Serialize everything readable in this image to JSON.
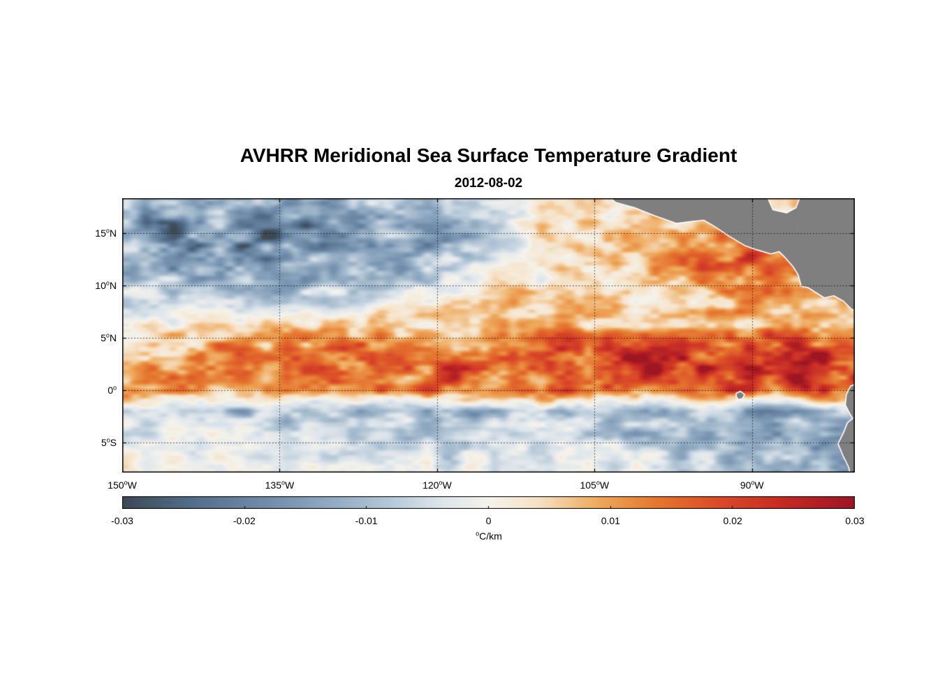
{
  "chart_data": {
    "type": "heatmap",
    "title": "AVHRR Meridional Sea Surface Temperature Gradient",
    "subtitle": "2012-08-02",
    "deg_symbol": "o",
    "extent": {
      "lon_west": 150,
      "lon_east": 80.2,
      "lat_north": 18.3,
      "lat_south": -7.85
    },
    "xaxis": {
      "ticks": [
        {
          "v": 150,
          "label": "150",
          "dir": "W"
        },
        {
          "v": 135,
          "label": "135",
          "dir": "W"
        },
        {
          "v": 120,
          "label": "120",
          "dir": "W"
        },
        {
          "v": 105,
          "label": "105",
          "dir": "W"
        },
        {
          "v": 90,
          "label": "90",
          "dir": "W"
        }
      ]
    },
    "yaxis": {
      "ticks": [
        {
          "v": 15,
          "label": "15",
          "dir": "N"
        },
        {
          "v": 10,
          "label": "10",
          "dir": "N"
        },
        {
          "v": 5,
          "label": "5",
          "dir": "N"
        },
        {
          "v": 0,
          "label": "0",
          "dir": ""
        },
        {
          "v": -5,
          "label": "5",
          "dir": "S"
        }
      ]
    },
    "grid_lines": {
      "lons": [
        150,
        135,
        120,
        105,
        90
      ],
      "lats": [
        15,
        10,
        5,
        0,
        -5
      ]
    },
    "colorbar": {
      "min": -0.03,
      "max": 0.03,
      "tick_values": [
        -0.03,
        -0.02,
        -0.01,
        0,
        0.01,
        0.02,
        0.03
      ],
      "ticks": [
        "-0.03",
        "-0.02",
        "-0.01",
        "0",
        "0.01",
        "0.02",
        "0.03"
      ],
      "label_sup": "o",
      "label_text": "C/km"
    },
    "colormap": [
      [
        -0.03,
        "#3d4953"
      ],
      [
        -0.024,
        "#54708e"
      ],
      [
        -0.017,
        "#7793b0"
      ],
      [
        -0.01,
        "#a6bccf"
      ],
      [
        -0.004,
        "#dce4eb"
      ],
      [
        0.0,
        "#f5f3ec"
      ],
      [
        0.004,
        "#f6e3c8"
      ],
      [
        0.009,
        "#efa95c"
      ],
      [
        0.014,
        "#e5752f"
      ],
      [
        0.019,
        "#da4a28"
      ],
      [
        0.024,
        "#c62b25"
      ],
      [
        0.03,
        "#9d1622"
      ]
    ],
    "grid": {
      "lons_w": [
        150,
        145,
        140,
        135,
        130,
        125,
        120,
        115,
        110,
        105,
        100,
        95,
        90,
        85,
        80
      ],
      "lats": [
        18,
        16,
        14,
        12,
        10,
        8,
        6,
        4,
        2,
        0,
        -2,
        -4,
        -6,
        -8
      ],
      "values": [
        [
          -0.013,
          -0.009,
          -0.016,
          -0.011,
          -0.013,
          -0.007,
          -0.012,
          -0.004,
          0.002,
          0.004,
          0.003,
          0.004,
          0.005,
          0.003,
          0.002
        ],
        [
          -0.016,
          -0.019,
          -0.013,
          -0.021,
          -0.016,
          -0.011,
          -0.013,
          -0.006,
          0.003,
          0.005,
          0.004,
          0.006,
          0.007,
          0.004,
          0.003
        ],
        [
          -0.009,
          -0.021,
          -0.016,
          -0.023,
          -0.018,
          -0.013,
          -0.016,
          -0.007,
          0.002,
          0.004,
          0.006,
          0.009,
          0.012,
          0.006,
          0.004
        ],
        [
          -0.011,
          -0.013,
          -0.019,
          -0.015,
          -0.011,
          -0.016,
          -0.009,
          -0.004,
          0.004,
          0.006,
          0.008,
          0.013,
          0.018,
          0.01,
          0.005
        ],
        [
          -0.007,
          -0.009,
          -0.011,
          -0.013,
          -0.009,
          -0.007,
          -0.005,
          0.002,
          0.004,
          0.005,
          0.006,
          0.008,
          0.01,
          0.011,
          0.006
        ],
        [
          -0.003,
          -0.004,
          -0.005,
          -0.006,
          -0.004,
          0.003,
          0.004,
          0.005,
          0.006,
          0.008,
          0.005,
          0.006,
          0.008,
          0.006,
          0.008
        ],
        [
          0.002,
          0.003,
          0.004,
          0.005,
          0.008,
          0.006,
          0.005,
          0.006,
          0.01,
          0.008,
          0.006,
          0.008,
          0.01,
          0.012,
          0.01
        ],
        [
          0.006,
          0.008,
          0.01,
          0.012,
          0.015,
          0.01,
          0.012,
          0.01,
          0.015,
          0.018,
          0.02,
          0.015,
          0.02,
          0.022,
          0.018
        ],
        [
          0.01,
          0.012,
          0.015,
          0.012,
          0.018,
          0.015,
          0.02,
          0.018,
          0.015,
          0.022,
          0.025,
          0.02,
          0.025,
          0.027,
          0.025
        ],
        [
          0.012,
          0.008,
          0.006,
          0.01,
          0.008,
          0.012,
          0.015,
          0.012,
          0.018,
          0.015,
          0.01,
          0.015,
          0.018,
          0.02,
          0.022
        ],
        [
          -0.004,
          -0.006,
          -0.01,
          -0.008,
          -0.012,
          -0.01,
          -0.008,
          -0.012,
          -0.01,
          -0.008,
          -0.012,
          -0.01,
          -0.014,
          -0.012,
          -0.008
        ],
        [
          -0.002,
          -0.003,
          -0.004,
          -0.006,
          -0.004,
          -0.006,
          -0.008,
          -0.006,
          -0.004,
          -0.006,
          -0.01,
          -0.012,
          -0.015,
          -0.01,
          -0.012
        ],
        [
          0.001,
          -0.002,
          -0.003,
          -0.002,
          -0.004,
          -0.003,
          -0.005,
          -0.004,
          -0.003,
          -0.004,
          -0.006,
          -0.008,
          -0.01,
          -0.012,
          -0.015
        ],
        [
          0.002,
          0.001,
          -0.002,
          -0.001,
          -0.003,
          -0.002,
          -0.003,
          -0.002,
          -0.004,
          -0.003,
          -0.004,
          -0.005,
          -0.008,
          -0.01,
          -0.012
        ]
      ]
    },
    "land_color": "#7f7f7f",
    "coast_color": "#ffffff",
    "land_polygons": [
      [
        [
          104.2,
          19.0
        ],
        [
          103.0,
          17.9
        ],
        [
          101.2,
          17.4
        ],
        [
          99.2,
          16.6
        ],
        [
          97.2,
          15.9
        ],
        [
          95.6,
          16.1
        ],
        [
          94.6,
          16.2
        ],
        [
          93.7,
          15.7
        ],
        [
          92.2,
          14.7
        ],
        [
          90.7,
          13.8
        ],
        [
          89.6,
          13.4
        ],
        [
          88.2,
          13.0
        ],
        [
          87.4,
          13.2
        ],
        [
          86.8,
          12.6
        ],
        [
          86.1,
          11.8
        ],
        [
          85.6,
          11.0
        ],
        [
          85.3,
          9.9
        ],
        [
          84.7,
          9.8
        ],
        [
          83.9,
          9.3
        ],
        [
          83.1,
          8.8
        ],
        [
          82.2,
          9.0
        ],
        [
          81.3,
          8.5
        ],
        [
          80.5,
          7.7
        ],
        [
          79.5,
          7.5
        ],
        [
          79.5,
          19.0
        ],
        [
          85.2,
          19.0
        ],
        [
          85.8,
          17.4
        ],
        [
          86.7,
          16.9
        ],
        [
          88.0,
          17.2
        ],
        [
          88.8,
          19.0
        ]
      ],
      [
        [
          79.5,
          0.8
        ],
        [
          80.6,
          0.4
        ],
        [
          81.0,
          -0.4
        ],
        [
          81.1,
          -1.4
        ],
        [
          80.7,
          -2.2
        ],
        [
          80.4,
          -2.7
        ],
        [
          80.9,
          -3.1
        ],
        [
          81.3,
          -4.1
        ],
        [
          81.8,
          -5.1
        ],
        [
          81.3,
          -6.3
        ],
        [
          80.8,
          -7.3
        ],
        [
          80.5,
          -8.5
        ],
        [
          79.5,
          -8.5
        ]
      ],
      [
        [
          91.5,
          -0.3
        ],
        [
          91.1,
          -0.1
        ],
        [
          90.7,
          -0.4
        ],
        [
          90.9,
          -0.8
        ],
        [
          91.3,
          -0.9
        ],
        [
          91.5,
          -0.6
        ]
      ]
    ]
  }
}
